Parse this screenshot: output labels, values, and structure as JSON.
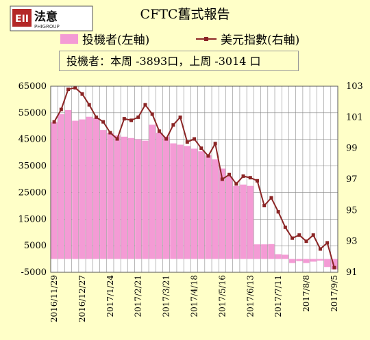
{
  "brand": {
    "name": "法意",
    "sub": "PHIGROUP",
    "mark": "EII"
  },
  "chart_data": {
    "type": "bar+line",
    "title": "CFTC舊式報告",
    "note": "投機者：本周 -3893口，上周 -3014 口",
    "legend": [
      "投機者(左軸)",
      "美元指數(右軸)"
    ],
    "colors": {
      "bar": "#f49bd5",
      "line": "#8b2525"
    },
    "ylim_left": [
      -5000,
      65000
    ],
    "yticks_left": [
      "65000",
      "55000",
      "45000",
      "35000",
      "25000",
      "15000",
      "5000",
      "-5000"
    ],
    "ylim_right": [
      91,
      103
    ],
    "yticks_right": [
      "103",
      "101",
      "99",
      "97",
      "95",
      "93",
      "91"
    ],
    "x_tick_labels": [
      "2016/11/29",
      "2016/12/27",
      "2017/1/24",
      "2017/2/21",
      "2017/3/21",
      "2017/4/18",
      "2017/5/16",
      "2017/6/13",
      "2017/7/11",
      "2017/8/8",
      "2017/9/5"
    ],
    "grid": true,
    "series": [
      {
        "name": "投機者(左軸)",
        "axis": "left",
        "values": [
          51500,
          54500,
          56000,
          52000,
          52500,
          53500,
          53000,
          48500,
          47500,
          46500,
          46000,
          45500,
          45000,
          44500,
          50500,
          47500,
          46000,
          43500,
          43000,
          42500,
          41500,
          40500,
          39000,
          37500,
          34000,
          31000,
          27500,
          28000,
          27500,
          5500,
          5500,
          5600,
          1800,
          1600,
          -1500,
          -800,
          -1500,
          -1000,
          -600,
          -3014,
          -3893
        ]
      },
      {
        "name": "美元指數(右軸)",
        "axis": "right",
        "values": [
          100.7,
          101.5,
          102.8,
          102.9,
          102.5,
          101.8,
          101.0,
          100.7,
          100.0,
          99.6,
          100.9,
          100.8,
          101.0,
          101.8,
          101.2,
          100.1,
          99.6,
          100.5,
          101.0,
          99.4,
          99.6,
          99.0,
          98.5,
          99.3,
          97.0,
          97.3,
          96.7,
          97.2,
          97.1,
          96.9,
          95.3,
          95.8,
          94.9,
          93.9,
          93.2,
          93.4,
          93.0,
          93.4,
          92.5,
          92.9,
          91.3
        ]
      }
    ]
  }
}
